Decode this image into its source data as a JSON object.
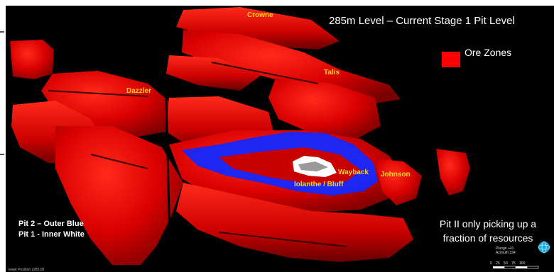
{
  "header": {
    "title": "285m Level – Current Stage 1 Pit Level"
  },
  "legend": {
    "swatch_color": "#ff0000",
    "label": "Ore Zones"
  },
  "zones": [
    {
      "label": "Crowne"
    },
    {
      "label": "Talis"
    },
    {
      "label": "Dazzler"
    },
    {
      "label": "Wayback"
    },
    {
      "label": "Johnson"
    },
    {
      "label": "Iolanthe / Bluff"
    }
  ],
  "pit_legend": {
    "line1": "Pit 2 – Outer Blue",
    "line2": "Pit 1 - Inner White"
  },
  "note": {
    "line1": "Pit II only picking up a",
    "line2": "fraction of resources"
  },
  "orientation": {
    "plunge": "Plunge +41",
    "azimuth": "Azimuth 334",
    "globe_icon": "globe-icon"
  },
  "scale_bar": {
    "ticks": "0 25 50 75 100"
  },
  "viewer": {
    "position": "iewer Position z285.00"
  },
  "colors": {
    "ore": "#e00000",
    "pit2": "#1428ff",
    "pit1": "#ffffff",
    "label": "#ffd21e",
    "background": "#000000"
  }
}
